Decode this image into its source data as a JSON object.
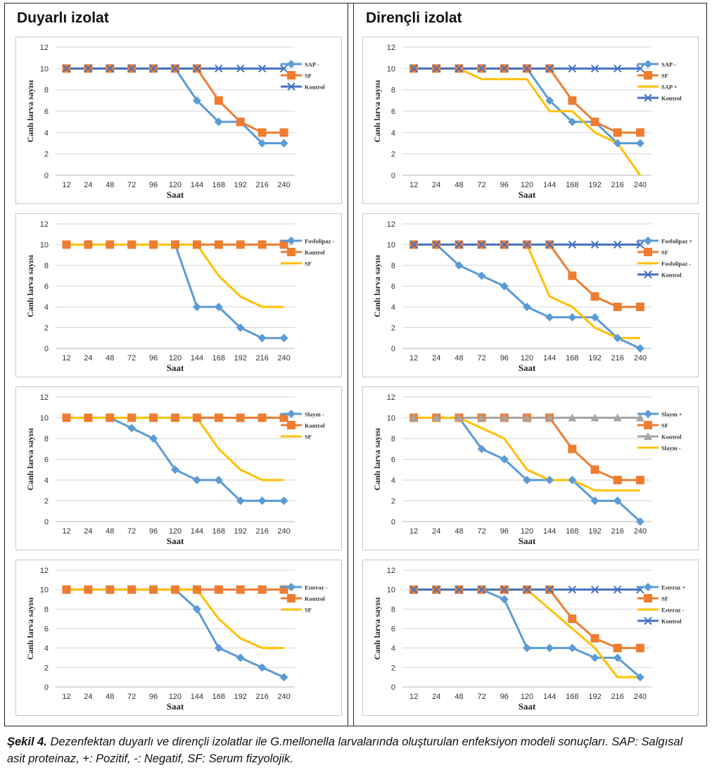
{
  "left_title": "Duyarlı izolat",
  "right_title": "Dirençli izolat",
  "caption": {
    "label": "Şekil 4.",
    "text": " Dezenfektan duyarlı ve dirençli izolatlar ile G.mellonella larvalarında oluşturulan enfeksiyon modeli sonuçları. SAP: Salgısal asit proteinaz, +: Pozitif, -: Negatif, SF: Serum fizyolojik."
  },
  "colors": {
    "blue": "#5b9bd5",
    "orange": "#ed7d31",
    "yellow": "#ffc000",
    "navy": "#4472c4",
    "gray": "#a5a5a5"
  },
  "chart_data": [
    {
      "type": "line",
      "isolate": "Duyarlı izolat",
      "categories": [
        "12",
        "24",
        "48",
        "72",
        "96",
        "120",
        "144",
        "168",
        "192",
        "216",
        "240"
      ],
      "xlabel": "Saat",
      "ylabel": "Canlı larva sayısı",
      "ylim": [
        0,
        12
      ],
      "yticks": [
        0,
        2,
        4,
        6,
        8,
        10,
        12
      ],
      "grid": true,
      "legend": "right",
      "series": [
        {
          "name": "SAP -",
          "color": "#5b9bd5",
          "marker": "diamond",
          "values": [
            10,
            10,
            10,
            10,
            10,
            10,
            7,
            5,
            5,
            3,
            3
          ]
        },
        {
          "name": "SF",
          "color": "#ed7d31",
          "marker": "square",
          "values": [
            10,
            10,
            10,
            10,
            10,
            10,
            10,
            7,
            5,
            4,
            4
          ]
        },
        {
          "name": "Kontrol",
          "color": "#4472c4",
          "marker": "x",
          "values": [
            10,
            10,
            10,
            10,
            10,
            10,
            10,
            10,
            10,
            10,
            10
          ]
        }
      ]
    },
    {
      "type": "line",
      "isolate": "Dirençli izolat",
      "categories": [
        "12",
        "24",
        "48",
        "72",
        "96",
        "120",
        "144",
        "168",
        "192",
        "216",
        "240"
      ],
      "xlabel": "Saat",
      "ylabel": "Canlı larva sayısı",
      "ylim": [
        0,
        12
      ],
      "yticks": [
        0,
        2,
        4,
        6,
        8,
        10,
        12
      ],
      "grid": true,
      "legend": "right",
      "series": [
        {
          "name": "SAP -",
          "color": "#5b9bd5",
          "marker": "diamond",
          "values": [
            10,
            10,
            10,
            10,
            10,
            10,
            7,
            5,
            5,
            3,
            3
          ]
        },
        {
          "name": "SF",
          "color": "#ed7d31",
          "marker": "square",
          "values": [
            10,
            10,
            10,
            10,
            10,
            10,
            10,
            7,
            5,
            4,
            4
          ]
        },
        {
          "name": "SAP +",
          "color": "#ffc000",
          "marker": "none",
          "values": [
            10,
            10,
            10,
            9,
            9,
            9,
            6,
            6,
            4,
            3,
            0
          ]
        },
        {
          "name": "Kontrol",
          "color": "#4472c4",
          "marker": "x",
          "values": [
            10,
            10,
            10,
            10,
            10,
            10,
            10,
            10,
            10,
            10,
            10
          ]
        }
      ]
    },
    {
      "type": "line",
      "isolate": "Duyarlı izolat",
      "categories": [
        "12",
        "24",
        "48",
        "72",
        "96",
        "120",
        "144",
        "168",
        "192",
        "216",
        "240"
      ],
      "xlabel": "Saat",
      "ylabel": "Canlı larva sayısı",
      "ylim": [
        0,
        12
      ],
      "yticks": [
        0,
        2,
        4,
        6,
        8,
        10,
        12
      ],
      "grid": true,
      "legend": "right",
      "series": [
        {
          "name": "Fosfolipaz -",
          "color": "#5b9bd5",
          "marker": "diamond",
          "values": [
            10,
            10,
            10,
            10,
            10,
            10,
            4,
            4,
            2,
            1,
            1
          ]
        },
        {
          "name": "Kontrol",
          "color": "#ed7d31",
          "marker": "square",
          "values": [
            10,
            10,
            10,
            10,
            10,
            10,
            10,
            10,
            10,
            10,
            10
          ]
        },
        {
          "name": "SF",
          "color": "#ffc000",
          "marker": "none",
          "values": [
            10,
            10,
            10,
            10,
            10,
            10,
            10,
            7,
            5,
            4,
            4
          ]
        }
      ]
    },
    {
      "type": "line",
      "isolate": "Dirençli izolat",
      "categories": [
        "12",
        "24",
        "48",
        "72",
        "96",
        "120",
        "144",
        "168",
        "192",
        "216",
        "240"
      ],
      "xlabel": "Saat",
      "ylabel": "Canlı larva sayısı",
      "ylim": [
        0,
        12
      ],
      "yticks": [
        0,
        2,
        4,
        6,
        8,
        10,
        12
      ],
      "grid": true,
      "legend": "right",
      "series": [
        {
          "name": "Fosfolipaz +",
          "color": "#5b9bd5",
          "marker": "diamond",
          "values": [
            10,
            10,
            8,
            7,
            6,
            4,
            3,
            3,
            3,
            1,
            0
          ]
        },
        {
          "name": "SF",
          "color": "#ed7d31",
          "marker": "square",
          "values": [
            10,
            10,
            10,
            10,
            10,
            10,
            10,
            7,
            5,
            4,
            4
          ]
        },
        {
          "name": "Fosfolipaz -",
          "color": "#ffc000",
          "marker": "none",
          "values": [
            10,
            10,
            10,
            10,
            10,
            10,
            5,
            4,
            2,
            1,
            1
          ]
        },
        {
          "name": "Kontrol",
          "color": "#4472c4",
          "marker": "x",
          "values": [
            10,
            10,
            10,
            10,
            10,
            10,
            10,
            10,
            10,
            10,
            10
          ]
        }
      ]
    },
    {
      "type": "line",
      "isolate": "Duyarlı izolat",
      "categories": [
        "12",
        "24",
        "48",
        "72",
        "96",
        "120",
        "144",
        "168",
        "192",
        "216",
        "240"
      ],
      "xlabel": "Saat",
      "ylabel": "Canlı larva sayısı",
      "ylim": [
        0,
        12
      ],
      "yticks": [
        0,
        2,
        4,
        6,
        8,
        10,
        12
      ],
      "grid": true,
      "legend": "right",
      "series": [
        {
          "name": "Slaym -",
          "color": "#5b9bd5",
          "marker": "diamond",
          "values": [
            10,
            10,
            10,
            9,
            8,
            5,
            4,
            4,
            2,
            2,
            2
          ]
        },
        {
          "name": "Kontrol",
          "color": "#ed7d31",
          "marker": "square",
          "values": [
            10,
            10,
            10,
            10,
            10,
            10,
            10,
            10,
            10,
            10,
            10
          ]
        },
        {
          "name": "SF",
          "color": "#ffc000",
          "marker": "none",
          "values": [
            10,
            10,
            10,
            10,
            10,
            10,
            10,
            7,
            5,
            4,
            4
          ]
        }
      ]
    },
    {
      "type": "line",
      "isolate": "Dirençli izolat",
      "categories": [
        "12",
        "24",
        "48",
        "72",
        "96",
        "120",
        "144",
        "168",
        "192",
        "216",
        "240"
      ],
      "xlabel": "Saat",
      "ylabel": "Canlı larva sayısı",
      "ylim": [
        0,
        12
      ],
      "yticks": [
        0,
        2,
        4,
        6,
        8,
        10,
        12
      ],
      "grid": true,
      "legend": "right",
      "series": [
        {
          "name": "Slaym +",
          "color": "#5b9bd5",
          "marker": "diamond",
          "values": [
            10,
            10,
            10,
            7,
            6,
            4,
            4,
            4,
            2,
            2,
            0
          ]
        },
        {
          "name": "SF",
          "color": "#ed7d31",
          "marker": "square",
          "values": [
            10,
            10,
            10,
            10,
            10,
            10,
            10,
            7,
            5,
            4,
            4
          ]
        },
        {
          "name": "Kontrol",
          "color": "#a5a5a5",
          "marker": "triangle",
          "values": [
            10,
            10,
            10,
            10,
            10,
            10,
            10,
            10,
            10,
            10,
            10
          ]
        },
        {
          "name": "Slaym -",
          "color": "#ffc000",
          "marker": "none",
          "values": [
            10,
            10,
            10,
            9,
            8,
            5,
            4,
            4,
            3,
            3,
            3
          ]
        }
      ]
    },
    {
      "type": "line",
      "isolate": "Duyarlı izolat",
      "categories": [
        "12",
        "24",
        "48",
        "72",
        "96",
        "120",
        "144",
        "168",
        "192",
        "216",
        "240"
      ],
      "xlabel": "Saat",
      "ylabel": "Canlı larva sayısı",
      "ylim": [
        0,
        12
      ],
      "yticks": [
        0,
        2,
        4,
        6,
        8,
        10,
        12
      ],
      "grid": true,
      "legend": "right",
      "series": [
        {
          "name": "Esteraz -",
          "color": "#5b9bd5",
          "marker": "diamond",
          "values": [
            10,
            10,
            10,
            10,
            10,
            10,
            8,
            4,
            3,
            2,
            1
          ]
        },
        {
          "name": "Kontrol",
          "color": "#ed7d31",
          "marker": "square",
          "values": [
            10,
            10,
            10,
            10,
            10,
            10,
            10,
            10,
            10,
            10,
            10
          ]
        },
        {
          "name": "SF",
          "color": "#ffc000",
          "marker": "none",
          "values": [
            10,
            10,
            10,
            10,
            10,
            10,
            10,
            7,
            5,
            4,
            4
          ]
        }
      ]
    },
    {
      "type": "line",
      "isolate": "Dirençli izolat",
      "categories": [
        "12",
        "24",
        "48",
        "72",
        "96",
        "120",
        "144",
        "168",
        "192",
        "216",
        "240"
      ],
      "xlabel": "Saat",
      "ylabel": "Canlı larva sayısı",
      "ylim": [
        0,
        12
      ],
      "yticks": [
        0,
        2,
        4,
        6,
        8,
        10,
        12
      ],
      "grid": true,
      "legend": "right",
      "series": [
        {
          "name": "Esteraz +",
          "color": "#5b9bd5",
          "marker": "diamond",
          "values": [
            10,
            10,
            10,
            10,
            9,
            4,
            4,
            4,
            3,
            3,
            1
          ]
        },
        {
          "name": "SF",
          "color": "#ed7d31",
          "marker": "square",
          "values": [
            10,
            10,
            10,
            10,
            10,
            10,
            10,
            7,
            5,
            4,
            4
          ]
        },
        {
          "name": "Esteraz -",
          "color": "#ffc000",
          "marker": "none",
          "values": [
            10,
            10,
            10,
            10,
            10,
            10,
            8,
            6,
            4,
            1,
            1
          ]
        },
        {
          "name": "Kontrol",
          "color": "#4472c4",
          "marker": "x",
          "values": [
            10,
            10,
            10,
            10,
            10,
            10,
            10,
            10,
            10,
            10,
            10
          ]
        }
      ]
    }
  ]
}
